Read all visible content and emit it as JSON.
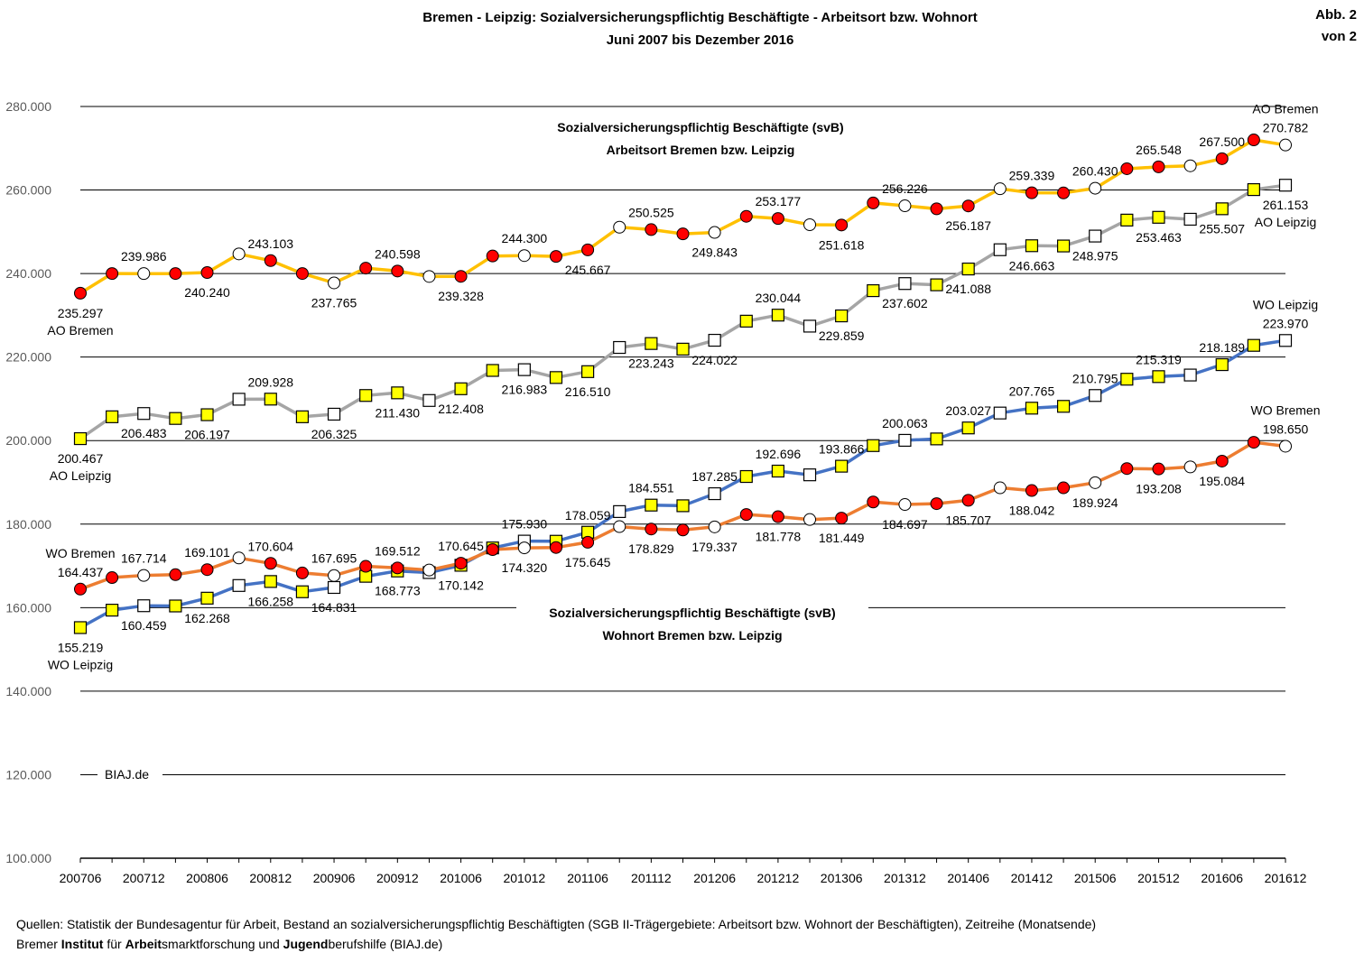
{
  "header": {
    "title": "Bremen - Leipzig: Sozialversicherungspflichtig Beschäftigte - Arbeitsort bzw. Wohnort",
    "subtitle": "Juni 2007 bis Dezember 2016",
    "corner_line1": "Abb. 2",
    "corner_line2": "von 2"
  },
  "footer": {
    "sources": "Quellen: Statistik der Bundesagentur für Arbeit, Bestand an sozialversicherungspflichtig Beschäftigten (SGB II-Trägergebiete: Arbeitsort bzw. Wohnort der Beschäftigten), Zeitreihe (Monatsende)",
    "org_parts": [
      {
        "text": "Bremer ",
        "bold": false
      },
      {
        "text": "Institut",
        "bold": true
      },
      {
        "text": " für ",
        "bold": false
      },
      {
        "text": "Arbeit",
        "bold": true
      },
      {
        "text": "smarktforschung und ",
        "bold": false
      },
      {
        "text": "Jugend",
        "bold": true
      },
      {
        "text": "berufshilfe (BIAJ.de)",
        "bold": false
      }
    ]
  },
  "chart_data": {
    "type": "line",
    "x": [
      "200706",
      "200709",
      "200712",
      "200803",
      "200806",
      "200809",
      "200812",
      "200903",
      "200906",
      "200909",
      "200912",
      "201003",
      "201006",
      "201009",
      "201012",
      "201103",
      "201106",
      "201109",
      "201112",
      "201203",
      "201206",
      "201209",
      "201212",
      "201303",
      "201306",
      "201309",
      "201312",
      "201403",
      "201406",
      "201409",
      "201412",
      "201503",
      "201506",
      "201509",
      "201512",
      "201603",
      "201606",
      "201609",
      "201612"
    ],
    "x_tick_labels": [
      "200706",
      "200712",
      "200806",
      "200812",
      "200906",
      "200912",
      "201006",
      "201012",
      "201106",
      "201112",
      "201206",
      "201212",
      "201306",
      "201312",
      "201406",
      "201412",
      "201506",
      "201512",
      "201606",
      "201612"
    ],
    "y_ticks": [
      "100.000",
      "120.000",
      "140.000",
      "160.000",
      "180.000",
      "200.000",
      "220.000",
      "240.000",
      "260.000",
      "280.000"
    ],
    "ylim": [
      100000,
      280000
    ],
    "grid": true,
    "watermark": "BIAJ.de",
    "annotations": [
      {
        "lines": [
          "Sozialversicherungspflichtig Beschäftigte (svB)",
          "Arbeitsort Bremen bzw. Leipzig"
        ]
      },
      {
        "lines": [
          "Sozialversicherungspflichtig Beschäftigte (svB)",
          "Wohnort Bremen bzw. Leipzig"
        ]
      }
    ],
    "series": [
      {
        "name": "AO Bremen",
        "color": "#FFC000",
        "marker": "circle",
        "values": [
          235297,
          240000,
          239986,
          240000,
          240240,
          244700,
          243103,
          240000,
          237765,
          241300,
          240598,
          239300,
          239328,
          244200,
          244300,
          244100,
          245667,
          251100,
          250525,
          249500,
          249843,
          253700,
          253177,
          251700,
          251618,
          256900,
          256226,
          255500,
          256187,
          260300,
          259339,
          259300,
          260430,
          265100,
          265548,
          265800,
          267500,
          272000,
          270782
        ]
      },
      {
        "name": "AO Leipzig",
        "color": "#A5A5A5",
        "marker": "square",
        "values": [
          200467,
          205700,
          206483,
          205300,
          206197,
          209900,
          209928,
          205700,
          206325,
          210800,
          211430,
          209600,
          212408,
          216800,
          216983,
          215100,
          216510,
          222300,
          223243,
          221900,
          224022,
          228600,
          230044,
          227400,
          229859,
          235900,
          237602,
          237300,
          241088,
          245700,
          246663,
          246600,
          248975,
          252800,
          253463,
          253000,
          255507,
          260100,
          261153
        ]
      },
      {
        "name": "WO Leipzig",
        "color": "#4472C4",
        "marker": "square",
        "values": [
          155219,
          159400,
          160459,
          160400,
          162268,
          165300,
          166258,
          163800,
          164831,
          167500,
          168773,
          168400,
          170142,
          174300,
          175930,
          175900,
          178059,
          183000,
          184551,
          184400,
          187285,
          191400,
          192696,
          191800,
          193866,
          198800,
          200063,
          200400,
          203027,
          206600,
          207765,
          208200,
          210795,
          214700,
          215319,
          215700,
          218189,
          222800,
          223970
        ]
      },
      {
        "name": "WO Bremen",
        "color": "#ED7D31",
        "marker": "circle",
        "values": [
          164437,
          167200,
          167714,
          167900,
          169101,
          171900,
          170604,
          168300,
          167695,
          169900,
          169512,
          169000,
          170645,
          173900,
          174320,
          174400,
          175645,
          179400,
          178829,
          178600,
          179337,
          182300,
          181778,
          181100,
          181449,
          185300,
          184697,
          184900,
          185707,
          188700,
          188042,
          188700,
          189924,
          193300,
          193208,
          193700,
          195084,
          199600,
          198650
        ]
      }
    ],
    "point_labels": [
      {
        "series": 0,
        "i": 0,
        "text": "235.297",
        "pos": "below"
      },
      {
        "series": 0,
        "i": 2,
        "text": "239.986",
        "pos": "above"
      },
      {
        "series": 0,
        "i": 4,
        "text": "240.240",
        "pos": "below"
      },
      {
        "series": 0,
        "i": 6,
        "text": "243.103",
        "pos": "above"
      },
      {
        "series": 0,
        "i": 8,
        "text": "237.765",
        "pos": "below"
      },
      {
        "series": 0,
        "i": 10,
        "text": "240.598",
        "pos": "above"
      },
      {
        "series": 0,
        "i": 12,
        "text": "239.328",
        "pos": "below"
      },
      {
        "series": 0,
        "i": 14,
        "text": "244.300",
        "pos": "above"
      },
      {
        "series": 0,
        "i": 16,
        "text": "245.667",
        "pos": "below"
      },
      {
        "series": 0,
        "i": 18,
        "text": "250.525",
        "pos": "above"
      },
      {
        "series": 0,
        "i": 20,
        "text": "249.843",
        "pos": "below"
      },
      {
        "series": 0,
        "i": 22,
        "text": "253.177",
        "pos": "above"
      },
      {
        "series": 0,
        "i": 24,
        "text": "251.618",
        "pos": "below"
      },
      {
        "series": 0,
        "i": 26,
        "text": "256.226",
        "pos": "above"
      },
      {
        "series": 0,
        "i": 28,
        "text": "256.187",
        "pos": "below"
      },
      {
        "series": 0,
        "i": 30,
        "text": "259.339",
        "pos": "above"
      },
      {
        "series": 0,
        "i": 32,
        "text": "260.430",
        "pos": "above"
      },
      {
        "series": 0,
        "i": 34,
        "text": "265.548",
        "pos": "above"
      },
      {
        "series": 0,
        "i": 36,
        "text": "267.500",
        "pos": "above"
      },
      {
        "series": 0,
        "i": 38,
        "text": "270.782",
        "pos": "above"
      },
      {
        "series": 1,
        "i": 0,
        "text": "200.467",
        "pos": "below"
      },
      {
        "series": 1,
        "i": 2,
        "text": "206.483",
        "pos": "below"
      },
      {
        "series": 1,
        "i": 4,
        "text": "206.197",
        "pos": "below"
      },
      {
        "series": 1,
        "i": 6,
        "text": "209.928",
        "pos": "above"
      },
      {
        "series": 1,
        "i": 8,
        "text": "206.325",
        "pos": "below"
      },
      {
        "series": 1,
        "i": 10,
        "text": "211.430",
        "pos": "below"
      },
      {
        "series": 1,
        "i": 12,
        "text": "212.408",
        "pos": "below"
      },
      {
        "series": 1,
        "i": 14,
        "text": "216.983",
        "pos": "below"
      },
      {
        "series": 1,
        "i": 16,
        "text": "216.510",
        "pos": "below"
      },
      {
        "series": 1,
        "i": 18,
        "text": "223.243",
        "pos": "below"
      },
      {
        "series": 1,
        "i": 20,
        "text": "224.022",
        "pos": "below"
      },
      {
        "series": 1,
        "i": 22,
        "text": "230.044",
        "pos": "above"
      },
      {
        "series": 1,
        "i": 24,
        "text": "229.859",
        "pos": "below"
      },
      {
        "series": 1,
        "i": 26,
        "text": "237.602",
        "pos": "below"
      },
      {
        "series": 1,
        "i": 28,
        "text": "241.088",
        "pos": "below"
      },
      {
        "series": 1,
        "i": 30,
        "text": "246.663",
        "pos": "below"
      },
      {
        "series": 1,
        "i": 32,
        "text": "248.975",
        "pos": "below"
      },
      {
        "series": 1,
        "i": 34,
        "text": "253.463",
        "pos": "below"
      },
      {
        "series": 1,
        "i": 36,
        "text": "255.507",
        "pos": "below"
      },
      {
        "series": 1,
        "i": 38,
        "text": "261.153",
        "pos": "below"
      },
      {
        "series": 2,
        "i": 0,
        "text": "155.219",
        "pos": "below"
      },
      {
        "series": 2,
        "i": 2,
        "text": "160.459",
        "pos": "below"
      },
      {
        "series": 2,
        "i": 4,
        "text": "162.268",
        "pos": "below"
      },
      {
        "series": 2,
        "i": 6,
        "text": "166.258",
        "pos": "below"
      },
      {
        "series": 2,
        "i": 8,
        "text": "164.831",
        "pos": "below"
      },
      {
        "series": 2,
        "i": 10,
        "text": "168.773",
        "pos": "below"
      },
      {
        "series": 2,
        "i": 12,
        "text": "170.142",
        "pos": "below"
      },
      {
        "series": 2,
        "i": 14,
        "text": "175.930",
        "pos": "above"
      },
      {
        "series": 2,
        "i": 16,
        "text": "178.059",
        "pos": "above"
      },
      {
        "series": 2,
        "i": 18,
        "text": "184.551",
        "pos": "above"
      },
      {
        "series": 2,
        "i": 20,
        "text": "187.285",
        "pos": "above"
      },
      {
        "series": 2,
        "i": 22,
        "text": "192.696",
        "pos": "above"
      },
      {
        "series": 2,
        "i": 24,
        "text": "193.866",
        "pos": "above"
      },
      {
        "series": 2,
        "i": 26,
        "text": "200.063",
        "pos": "above"
      },
      {
        "series": 2,
        "i": 28,
        "text": "203.027",
        "pos": "above"
      },
      {
        "series": 2,
        "i": 30,
        "text": "207.765",
        "pos": "above"
      },
      {
        "series": 2,
        "i": 32,
        "text": "210.795",
        "pos": "above"
      },
      {
        "series": 2,
        "i": 34,
        "text": "215.319",
        "pos": "above"
      },
      {
        "series": 2,
        "i": 36,
        "text": "218.189",
        "pos": "above"
      },
      {
        "series": 2,
        "i": 38,
        "text": "223.970",
        "pos": "above"
      },
      {
        "series": 3,
        "i": 0,
        "text": "164.437",
        "pos": "above"
      },
      {
        "series": 3,
        "i": 2,
        "text": "167.714",
        "pos": "above"
      },
      {
        "series": 3,
        "i": 4,
        "text": "169.101",
        "pos": "above"
      },
      {
        "series": 3,
        "i": 6,
        "text": "170.604",
        "pos": "above"
      },
      {
        "series": 3,
        "i": 8,
        "text": "167.695",
        "pos": "above"
      },
      {
        "series": 3,
        "i": 10,
        "text": "169.512",
        "pos": "above"
      },
      {
        "series": 3,
        "i": 12,
        "text": "170.645",
        "pos": "above"
      },
      {
        "series": 3,
        "i": 14,
        "text": "174.320",
        "pos": "below"
      },
      {
        "series": 3,
        "i": 16,
        "text": "175.645",
        "pos": "below"
      },
      {
        "series": 3,
        "i": 18,
        "text": "178.829",
        "pos": "below"
      },
      {
        "series": 3,
        "i": 20,
        "text": "179.337",
        "pos": "below"
      },
      {
        "series": 3,
        "i": 22,
        "text": "181.778",
        "pos": "below"
      },
      {
        "series": 3,
        "i": 24,
        "text": "181.449",
        "pos": "below"
      },
      {
        "series": 3,
        "i": 26,
        "text": "184.697",
        "pos": "below"
      },
      {
        "series": 3,
        "i": 28,
        "text": "185.707",
        "pos": "below"
      },
      {
        "series": 3,
        "i": 30,
        "text": "188.042",
        "pos": "below"
      },
      {
        "series": 3,
        "i": 32,
        "text": "189.924",
        "pos": "below"
      },
      {
        "series": 3,
        "i": 34,
        "text": "193.208",
        "pos": "below"
      },
      {
        "series": 3,
        "i": 36,
        "text": "195.084",
        "pos": "below"
      },
      {
        "series": 3,
        "i": 38,
        "text": "198.650",
        "pos": "above"
      }
    ],
    "series_tags": [
      {
        "series": 0,
        "i": 0,
        "text": "AO Bremen",
        "pos": "below"
      },
      {
        "series": 0,
        "i": 38,
        "text": "AO Bremen",
        "pos": "above"
      },
      {
        "series": 1,
        "i": 0,
        "text": "AO Leipzig",
        "pos": "below"
      },
      {
        "series": 1,
        "i": 38,
        "text": "AO Leipzig",
        "pos": "below"
      },
      {
        "series": 2,
        "i": 0,
        "text": "WO Leipzig",
        "pos": "below"
      },
      {
        "series": 2,
        "i": 38,
        "text": "WO Leipzig",
        "pos": "above"
      },
      {
        "series": 3,
        "i": 0,
        "text": "WO Bremen",
        "pos": "above"
      },
      {
        "series": 3,
        "i": 38,
        "text": "WO Bremen",
        "pos": "above"
      }
    ]
  }
}
